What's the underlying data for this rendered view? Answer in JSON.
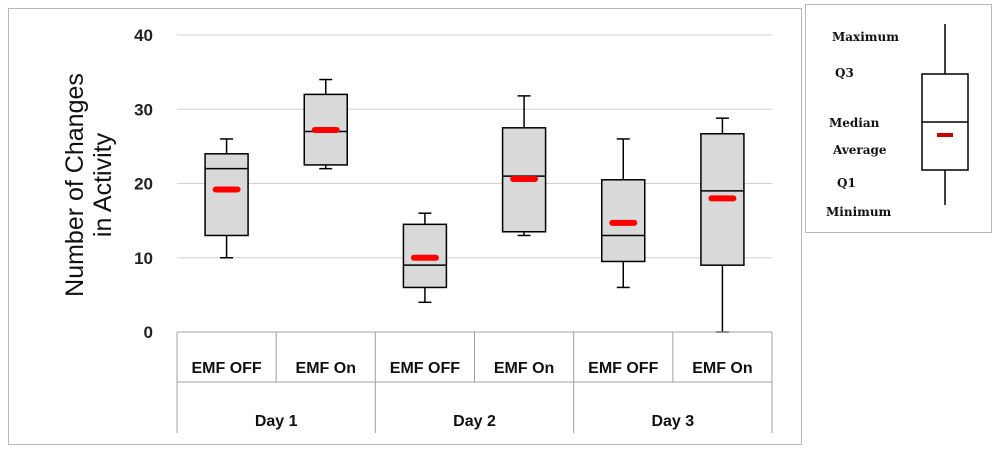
{
  "chart_data": {
    "type": "boxplot",
    "ylabel_lines": [
      "Number of Changes",
      "in Activity"
    ],
    "ylim": [
      0,
      40
    ],
    "yticks": [
      0,
      10,
      20,
      30,
      40
    ],
    "grid": true,
    "categories": [
      "EMF OFF",
      "EMF On",
      "EMF OFF",
      "EMF On",
      "EMF OFF",
      "EMF On"
    ],
    "groups": [
      "Day 1",
      "Day 2",
      "Day 3"
    ],
    "boxes": [
      {
        "min": 10,
        "q1": 13,
        "median": 22,
        "q3": 24,
        "max": 26,
        "mean": 19.2
      },
      {
        "min": 22,
        "q1": 22.5,
        "median": 27,
        "q3": 32,
        "max": 34,
        "mean": 27.2
      },
      {
        "min": 4,
        "q1": 6,
        "median": 9,
        "q3": 14.5,
        "max": 16,
        "mean": 10
      },
      {
        "min": 13,
        "q1": 13.5,
        "median": 21,
        "q3": 27.5,
        "max": 31.8,
        "mean": 20.6
      },
      {
        "min": 6,
        "q1": 9.5,
        "median": 13,
        "q3": 20.5,
        "max": 26,
        "mean": 14.7
      },
      {
        "min": 0,
        "q1": 9,
        "median": 19,
        "q3": 26.7,
        "max": 28.8,
        "mean": 18
      }
    ],
    "colors": {
      "box_fill": "#d9d9d9",
      "mean_marker": "#ff0000",
      "grid": "#d0d0d0"
    }
  },
  "legend": {
    "labels": [
      "Maximum",
      "Q3",
      "Median",
      "Average",
      "Q1",
      "Minimum"
    ],
    "mean_color": "#cc0000"
  }
}
